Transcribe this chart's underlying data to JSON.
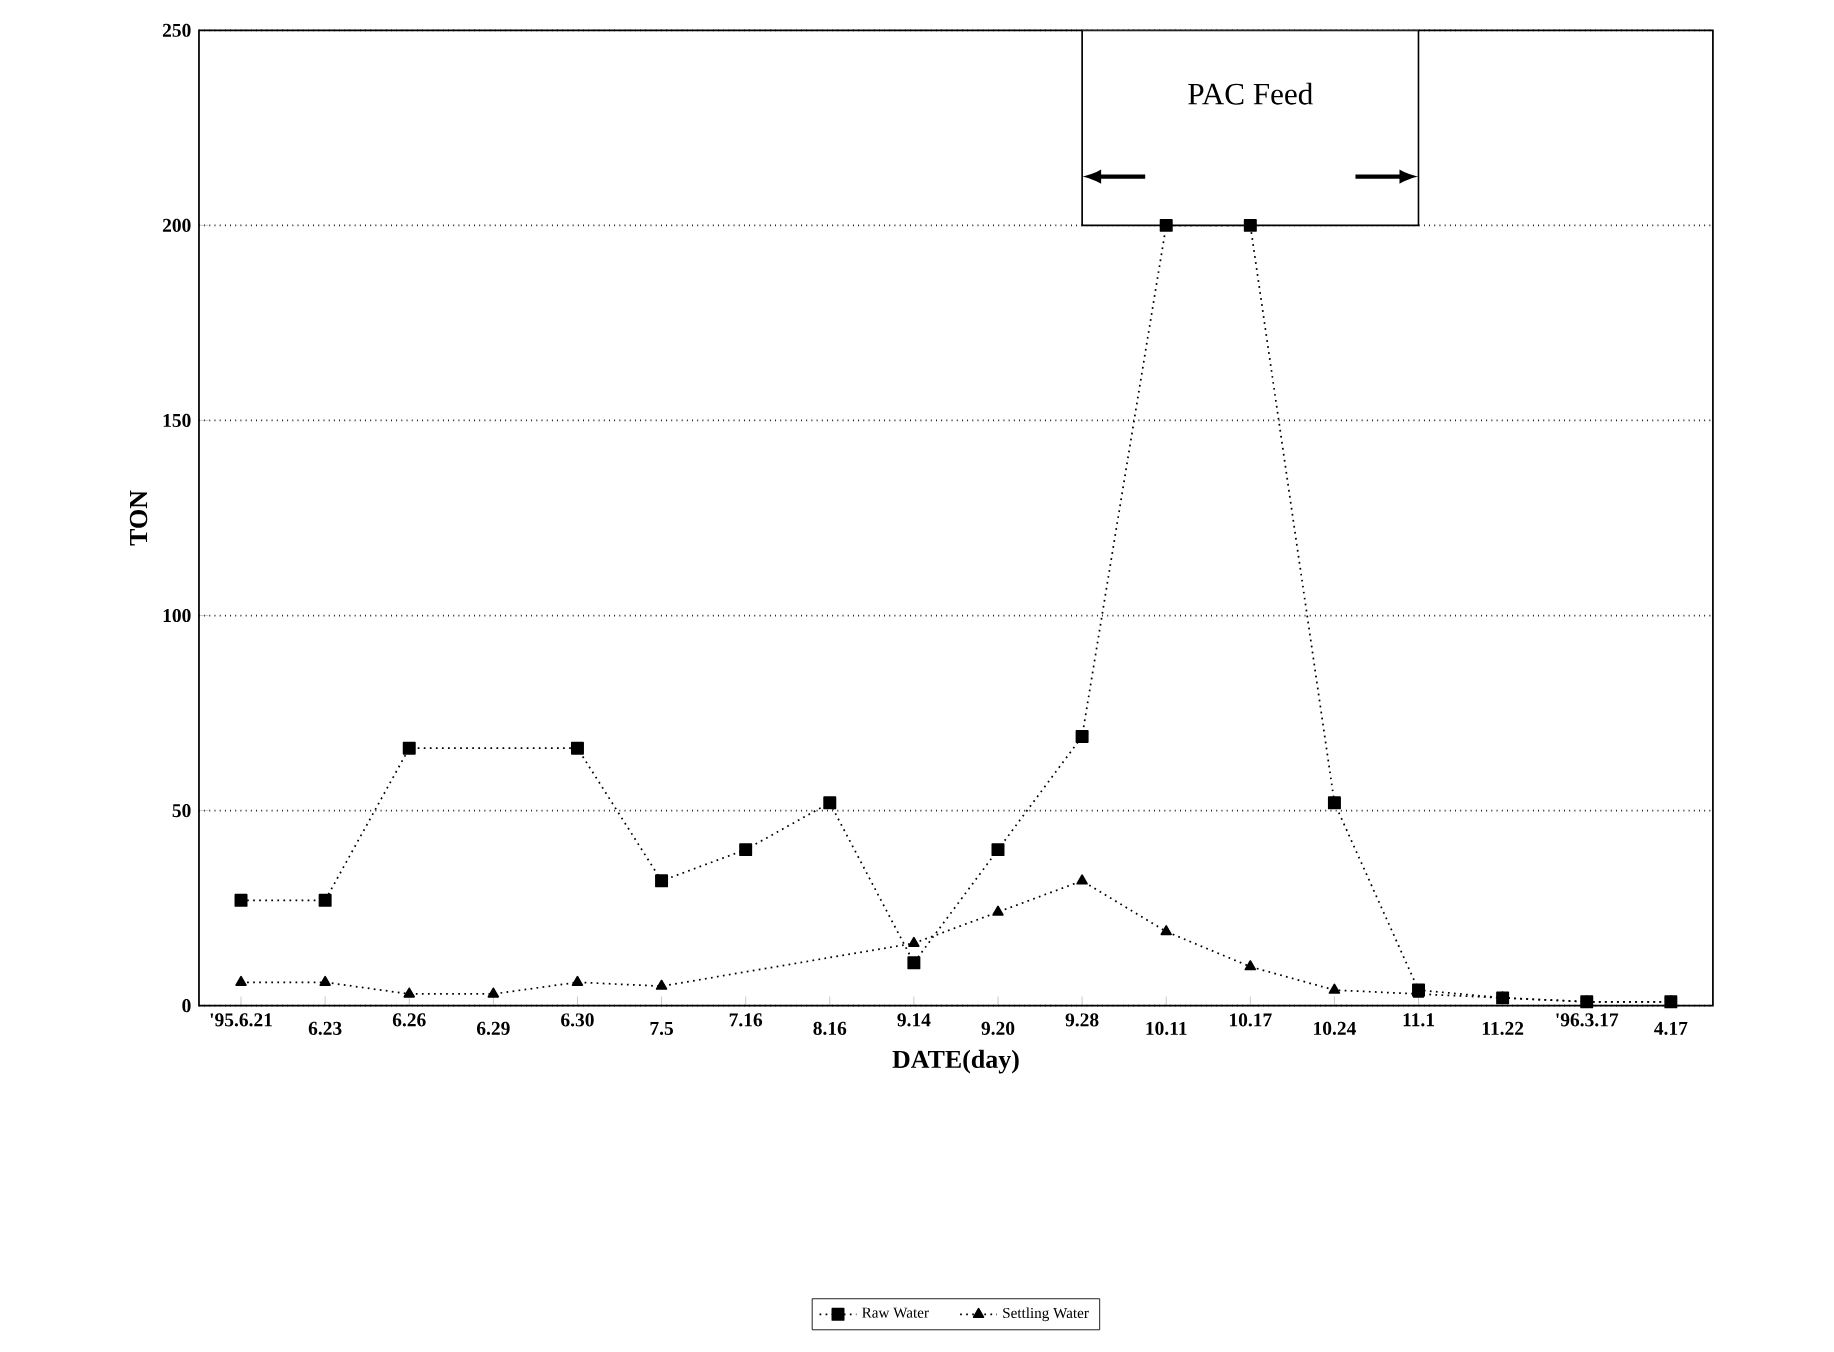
{
  "chart_data": {
    "type": "line",
    "xlabel": "DATE(day)",
    "ylabel": "TON",
    "categories": [
      "'95.6.21",
      "6.23",
      "6.26",
      "6.29",
      "6.30",
      "7.5",
      "7.16",
      "8.16",
      "9.14",
      "9.20",
      "9.28",
      "10.11",
      "10.17",
      "10.24",
      "11.1",
      "11.22",
      "'96.3.17",
      "4.17"
    ],
    "series": [
      {
        "name": "Raw Water",
        "color": "#000000",
        "marker": "square",
        "values": [
          27,
          27,
          66,
          null,
          66,
          32,
          40,
          52,
          11,
          40,
          69,
          200,
          200,
          52,
          4,
          2,
          1,
          1
        ]
      },
      {
        "name": "Settling Water",
        "color": "#000000",
        "marker": "triangle",
        "values": [
          6,
          6,
          3,
          3,
          6,
          5,
          null,
          null,
          16,
          24,
          32,
          19,
          10,
          4,
          3,
          2,
          1,
          1
        ]
      }
    ],
    "ylim": [
      0,
      250
    ],
    "yticks": [
      0,
      50,
      100,
      150,
      200,
      250
    ],
    "grid": "y",
    "legend": "bottom",
    "line_style": "dotted",
    "bands": [
      {
        "axis": "x",
        "from": "9.28",
        "to": "11.1",
        "label": "PAC Feed"
      }
    ]
  }
}
